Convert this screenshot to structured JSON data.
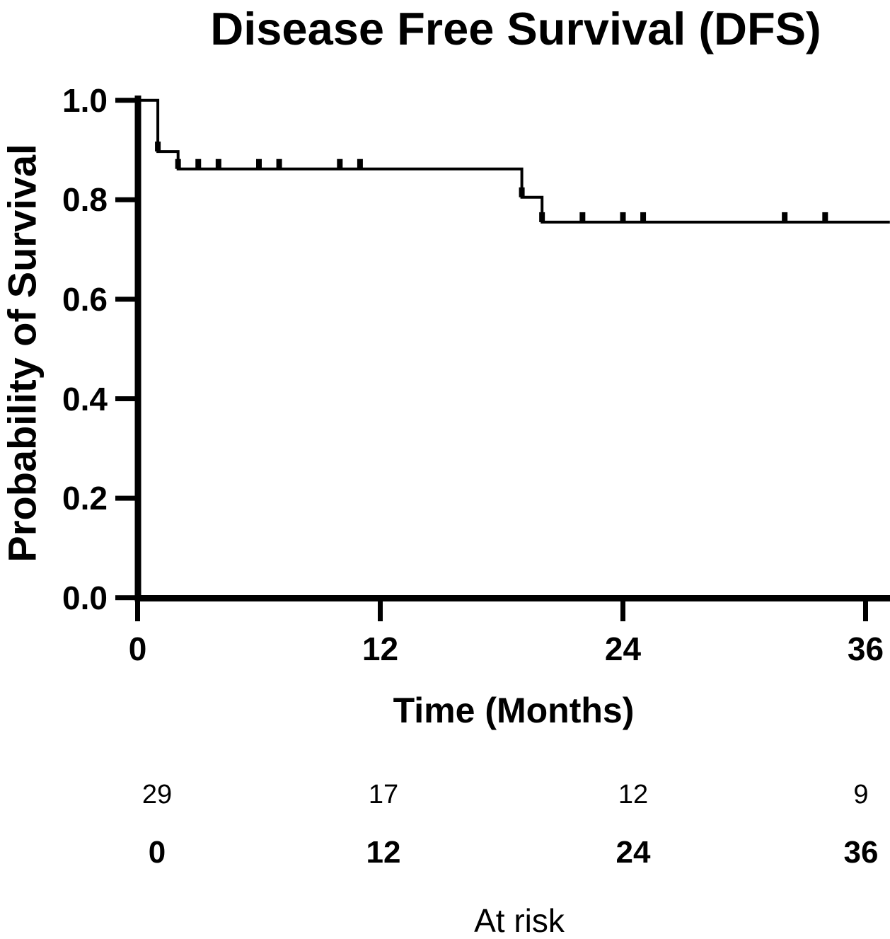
{
  "figure": {
    "background_color": "#ffffff",
    "ink_color": "#000000"
  },
  "chart_data": {
    "type": "line",
    "subtype": "kaplan-meier-step-curve",
    "title": "Disease Free Survival (DFS)",
    "xlabel": "Time (Months)",
    "ylabel": "Probability of Survival",
    "xlim": [
      0,
      36
    ],
    "ylim": [
      0.0,
      1.0
    ],
    "grid": false,
    "legend": "none",
    "x_ticks": [
      {
        "value": 0,
        "label": "0"
      },
      {
        "value": 12,
        "label": "12"
      },
      {
        "value": 24,
        "label": "24"
      },
      {
        "value": 36,
        "label": "36"
      }
    ],
    "y_ticks": [
      {
        "value": 1.0,
        "label": "1.0"
      },
      {
        "value": 0.8,
        "label": "0.8"
      },
      {
        "value": 0.6,
        "label": "0.6"
      },
      {
        "value": 0.4,
        "label": "0.4"
      },
      {
        "value": 0.2,
        "label": "0.2"
      },
      {
        "value": 0.0,
        "label": "0.0"
      }
    ],
    "series": [
      {
        "name": "DFS",
        "color": "#000000",
        "steps": [
          {
            "time": 0,
            "survival": 1.0
          },
          {
            "time": 1,
            "survival": 0.897
          },
          {
            "time": 2,
            "survival": 0.862
          },
          {
            "time": 19,
            "survival": 0.805
          },
          {
            "time": 20,
            "survival": 0.755
          }
        ],
        "curve_end_time": 37.2,
        "censor_marks": [
          {
            "time": 1,
            "survival": 0.897
          },
          {
            "time": 2,
            "survival": 0.862
          },
          {
            "time": 3,
            "survival": 0.862
          },
          {
            "time": 4,
            "survival": 0.862
          },
          {
            "time": 6,
            "survival": 0.862
          },
          {
            "time": 7,
            "survival": 0.862
          },
          {
            "time": 10,
            "survival": 0.862
          },
          {
            "time": 11,
            "survival": 0.862
          },
          {
            "time": 19,
            "survival": 0.805
          },
          {
            "time": 20,
            "survival": 0.755
          },
          {
            "time": 22,
            "survival": 0.755
          },
          {
            "time": 24,
            "survival": 0.755
          },
          {
            "time": 25,
            "survival": 0.755
          },
          {
            "time": 32,
            "survival": 0.755
          },
          {
            "time": 34,
            "survival": 0.755
          }
        ]
      }
    ],
    "at_risk_table": {
      "caption": "At risk",
      "times": [
        "0",
        "12",
        "24",
        "36"
      ],
      "counts": [
        "29",
        "17",
        "12",
        "9"
      ]
    }
  }
}
